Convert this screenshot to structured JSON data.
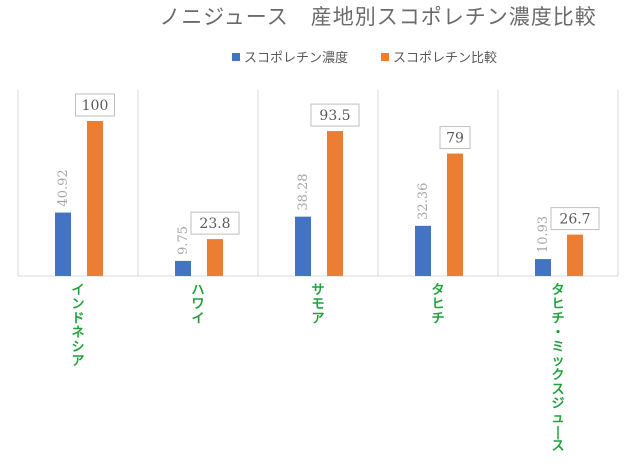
{
  "chart_data": {
    "type": "bar",
    "title": "ノニジュース　産地別スコポレチン濃度比較",
    "categories": [
      "インドネシア",
      "ハワイ",
      "サモア",
      "タヒチ",
      "タヒチ・ミックスジュース"
    ],
    "series": [
      {
        "name": "スコポレチン濃度",
        "values": [
          40.92,
          9.75,
          38.28,
          32.36,
          10.93
        ],
        "color": "#4472c4"
      },
      {
        "name": "スコポレチン比較",
        "values": [
          100,
          23.8,
          93.5,
          79,
          26.7
        ],
        "color": "#ed7d31"
      }
    ],
    "value_labels": {
      "series_0": [
        "40.92",
        "9.75",
        "38.28",
        "32.36",
        "10.93"
      ],
      "series_1": [
        "100",
        "23.8",
        "93.5",
        "79",
        "26.7"
      ]
    },
    "ylim": [
      0,
      120
    ],
    "grid": "vertical category separators",
    "legend_position": "top",
    "category_label_color": "#22a03c"
  }
}
